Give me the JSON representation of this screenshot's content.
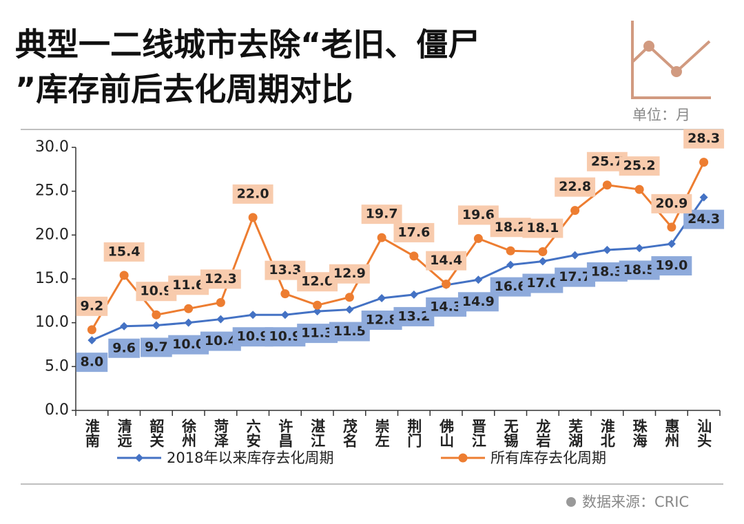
{
  "chart_data": {
    "type": "line",
    "title": [
      "典型一二线城市去除“老旧、僵尸",
      "”库存前后去化周期对比"
    ],
    "unit": "单位：月",
    "source": "数据来源：CRIC",
    "categories": [
      "淮南",
      "清远",
      "韶关",
      "徐州",
      "菏泽",
      "六安",
      "许昌",
      "湛江",
      "茂名",
      "崇左",
      "荆门",
      "佛山",
      "晋江",
      "无锡",
      "龙岩",
      "芜湖",
      "淮北",
      "珠海",
      "惠州",
      "汕头"
    ],
    "series": [
      {
        "name": "2018年以来库存去化周期",
        "color": "#4472c4",
        "label_color": "#8eaadb",
        "marker": "diamond",
        "label_side": "below",
        "values": [
          8.0,
          9.6,
          9.7,
          10.0,
          10.4,
          10.9,
          10.9,
          11.3,
          11.5,
          12.8,
          13.2,
          14.3,
          14.9,
          16.6,
          17.0,
          17.7,
          18.3,
          18.5,
          19.0,
          24.3
        ],
        "value_labels": [
          "8.0",
          "9.6",
          "9.7",
          "10.0",
          "10.4",
          "10.9",
          "10.9",
          "11.3",
          "11.5",
          "12.8",
          "13.2",
          "14.3",
          "14.9",
          "16.6",
          "17.0",
          "17.7",
          "18.3",
          "18.5",
          "19.0",
          "24.3"
        ]
      },
      {
        "name": "所有库存去化周期",
        "color": "#ed7d31",
        "label_color": "#f8cbad",
        "marker": "circle",
        "label_side": "above",
        "values": [
          9.2,
          15.4,
          10.9,
          11.6,
          12.3,
          22.0,
          13.3,
          12.0,
          12.9,
          19.7,
          17.6,
          14.4,
          19.6,
          18.2,
          18.1,
          22.8,
          25.7,
          25.2,
          20.9,
          28.3
        ],
        "value_labels": [
          "9.2",
          "15.4",
          "10.9",
          "11.6",
          "12.3",
          "22.0",
          "13.3",
          "12.0",
          "12.9",
          "19.7",
          "17.6",
          "14.4",
          "19.6",
          "18.2",
          "18.1",
          "22.8",
          "25.7",
          "25.2",
          "20.9",
          "28.3"
        ]
      }
    ],
    "ylim": [
      0,
      30
    ],
    "yticks": [
      {
        "value": 0,
        "label": "0.0"
      },
      {
        "value": 5,
        "label": "5.0"
      },
      {
        "value": 10,
        "label": "10.0"
      },
      {
        "value": 15,
        "label": "15.0"
      },
      {
        "value": 20,
        "label": "20.0"
      },
      {
        "value": 25,
        "label": "25.0"
      },
      {
        "value": 30,
        "label": "30.0"
      }
    ],
    "grid": false
  }
}
